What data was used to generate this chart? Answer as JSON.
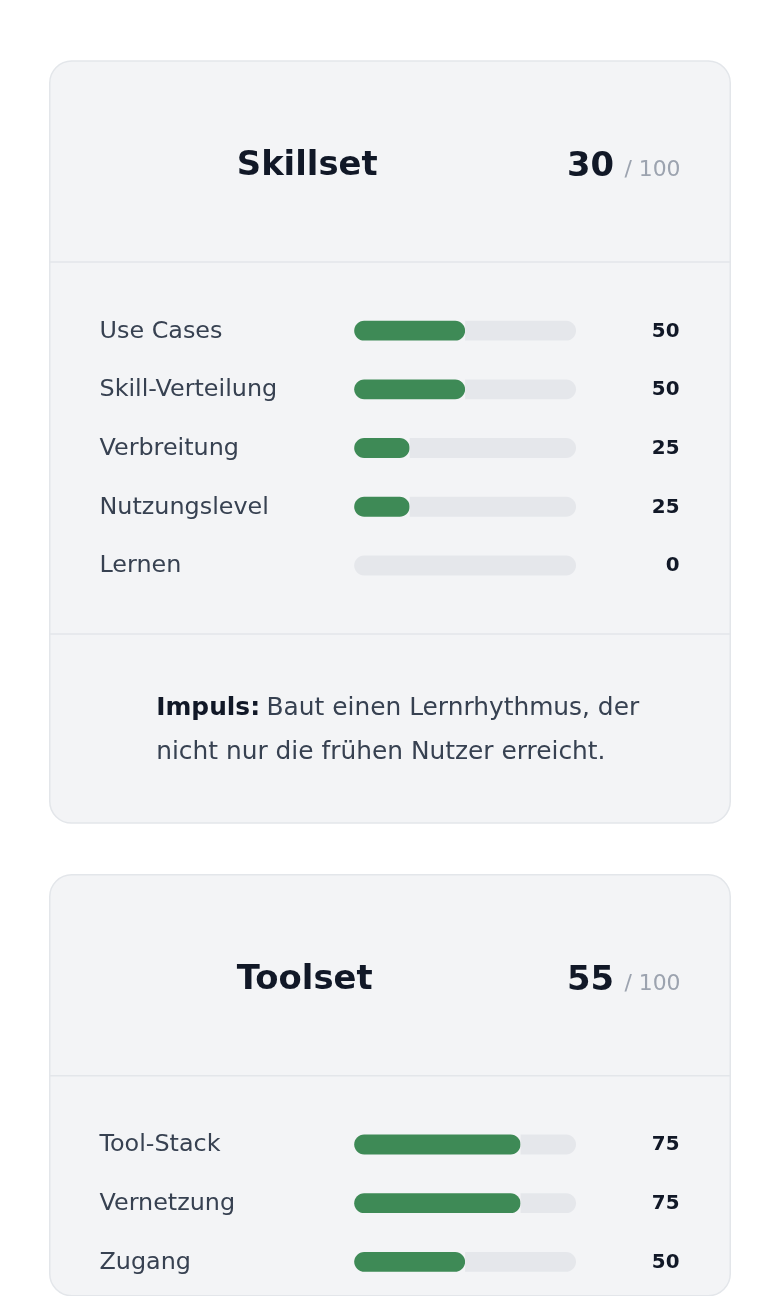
{
  "chart_data": [
    {
      "type": "bar",
      "orientation": "horizontal",
      "stacked": true,
      "title": "Skillset",
      "categories": [
        "Use Cases",
        "Skill-Verteilung",
        "Verbreitung",
        "Nutzungslevel",
        "Lernen"
      ],
      "series": [
        {
          "color": "#3e8a56",
          "values": [
            50,
            50,
            25,
            25,
            0
          ],
          "value_labels": [
            "50",
            "50",
            "25",
            "25",
            "0"
          ]
        },
        {
          "color": "#e5e7eb",
          "values": [
            50,
            50,
            75,
            75,
            100
          ]
        }
      ],
      "tick_labels": "y",
      "annotations": [
        "30",
        "/ 100",
        "Impuls:",
        "Baut einen Lernrhythmus, der nicht nur die frühen Nutzer erreicht."
      ]
    },
    {
      "type": "bar",
      "orientation": "horizontal",
      "stacked": true,
      "title": "Toolset",
      "categories": [
        "Tool-Stack",
        "Vernetzung",
        "Zugang"
      ],
      "series": [
        {
          "color": "#3e8a56",
          "values": [
            75,
            75,
            50
          ],
          "value_labels": [
            "75",
            "75",
            "50"
          ]
        },
        {
          "color": "#e5e7eb",
          "values": [
            25,
            25,
            50
          ]
        }
      ],
      "tick_labels": "y",
      "annotations": [
        "55",
        "/ 100"
      ]
    }
  ]
}
